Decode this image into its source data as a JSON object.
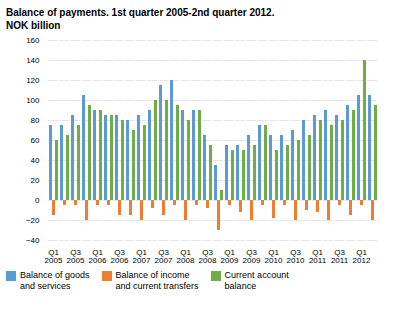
{
  "chart_data": {
    "type": "bar",
    "title": "Balance of payments. 1st quarter 2005-2nd quarter 2012.",
    "subtitle": "NOK billion",
    "categories": [
      "Q1\n2005",
      null,
      "Q3\n2005",
      null,
      "Q1\n2006",
      null,
      "Q3\n2006",
      null,
      "Q1\n2007",
      null,
      "Q3\n2007",
      null,
      "Q1\n2008",
      null,
      "Q3\n2008",
      null,
      "Q1\n2009",
      null,
      "Q3\n2009",
      null,
      "Q1\n2010",
      null,
      "Q3\n2010",
      null,
      "Q1\n2011",
      null,
      "Q3\n2011",
      null,
      "Q1\n2012",
      null
    ],
    "series": [
      {
        "name": "Balance of goods\nand services",
        "color": "#5B9BD5",
        "values": [
          75,
          75,
          85,
          105,
          90,
          85,
          85,
          80,
          85,
          90,
          115,
          120,
          90,
          90,
          65,
          35,
          55,
          55,
          65,
          75,
          65,
          65,
          70,
          80,
          85,
          90,
          85,
          95,
          105,
          105
        ]
      },
      {
        "name": "Balance of income\nand current transfers",
        "color": "#ED7D31",
        "values": [
          -15,
          -5,
          -5,
          -20,
          -5,
          -5,
          -15,
          -15,
          -20,
          -8,
          -15,
          -5,
          -20,
          -5,
          -8,
          -30,
          -5,
          -12,
          -20,
          -5,
          -18,
          -5,
          -20,
          -10,
          -12,
          -20,
          -5,
          -15,
          -5,
          -20
        ]
      },
      {
        "name": "Current account\nbalance",
        "color": "#70AD47",
        "values": [
          60,
          65,
          75,
          95,
          90,
          85,
          80,
          70,
          75,
          100,
          100,
          95,
          80,
          90,
          55,
          10,
          50,
          50,
          55,
          75,
          50,
          55,
          60,
          65,
          80,
          75,
          80,
          90,
          140,
          95
        ]
      }
    ],
    "ylim": [
      -40,
      160
    ],
    "yticks": [
      -40,
      -20,
      0,
      20,
      40,
      60,
      80,
      100,
      120,
      140,
      160
    ],
    "grid": true,
    "legend": "bottom"
  }
}
